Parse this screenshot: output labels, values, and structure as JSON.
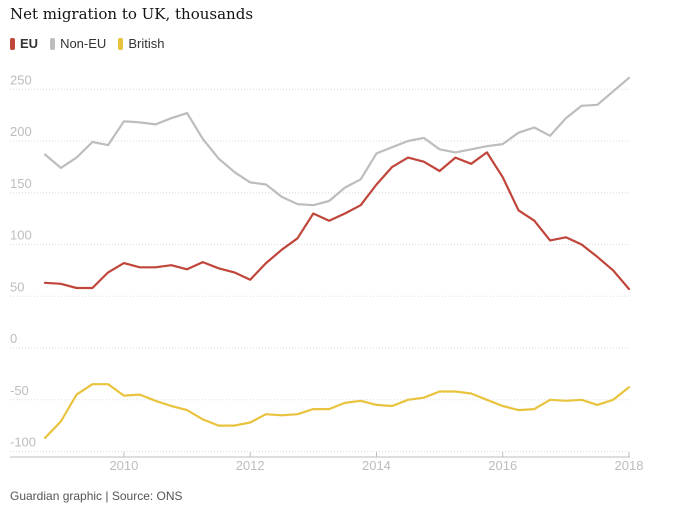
{
  "title": "Net migration to UK, thousands",
  "source": "Guardian graphic | Source: ONS",
  "chart_data": {
    "type": "line",
    "title": "Net migration to UK, thousands",
    "xlabel": "",
    "ylabel": "",
    "xlim": [
      2008.8,
      2018.2
    ],
    "ylim": [
      -100,
      260
    ],
    "y_ticks": [
      -100,
      -50,
      0,
      50,
      100,
      150,
      200,
      250
    ],
    "y_tick_labels": [
      "-100",
      "-50",
      "0",
      "50",
      "100",
      "150",
      "200",
      "250"
    ],
    "x_ticks": [
      2010,
      2012,
      2014,
      2016,
      2018
    ],
    "x_tick_labels": [
      "2010",
      "2012",
      "2014",
      "2016",
      "2018"
    ],
    "grid": "horizontal dotted",
    "legend": "top-left",
    "x": [
      2008.75,
      2009.0,
      2009.25,
      2009.5,
      2009.75,
      2010.0,
      2010.25,
      2010.5,
      2010.75,
      2011.0,
      2011.25,
      2011.5,
      2011.75,
      2012.0,
      2012.25,
      2012.5,
      2012.75,
      2013.0,
      2013.25,
      2013.5,
      2013.75,
      2014.0,
      2014.25,
      2014.5,
      2014.75,
      2015.0,
      2015.25,
      2015.5,
      2015.75,
      2016.0,
      2016.25,
      2016.5,
      2016.75,
      2017.0,
      2017.25,
      2017.5,
      2017.75,
      2018.0
    ],
    "series": [
      {
        "name": "EU",
        "color": "#c0453a",
        "values": [
          63,
          62,
          58,
          58,
          73,
          82,
          78,
          78,
          80,
          76,
          83,
          77,
          73,
          66,
          82,
          95,
          106,
          130,
          123,
          130,
          138,
          158,
          175,
          184,
          180,
          171,
          184,
          178,
          189,
          165,
          133,
          123,
          104,
          107,
          100,
          88,
          75,
          57
        ]
      },
      {
        "name": "Non-EU",
        "color": "#bdbdbd",
        "values": [
          187,
          174,
          184,
          199,
          196,
          219,
          218,
          216,
          222,
          227,
          202,
          183,
          170,
          160,
          158,
          146,
          139,
          138,
          142,
          155,
          163,
          188,
          194,
          200,
          203,
          192,
          189,
          192,
          195,
          197,
          208,
          213,
          205,
          222,
          234,
          235,
          248,
          261
        ]
      },
      {
        "name": "British",
        "color": "#e9c33e",
        "values": [
          -87,
          -71,
          -45,
          -35,
          -35,
          -46,
          -45,
          -51,
          -56,
          -60,
          -69,
          -75,
          -75,
          -72,
          -64,
          -65,
          -64,
          -59,
          -59,
          -53,
          -51,
          -55,
          -56,
          -50,
          -48,
          -42,
          -42,
          -44,
          -50,
          -56,
          -60,
          -59,
          -50,
          -51,
          -50,
          -55,
          -50,
          -38
        ]
      }
    ]
  }
}
